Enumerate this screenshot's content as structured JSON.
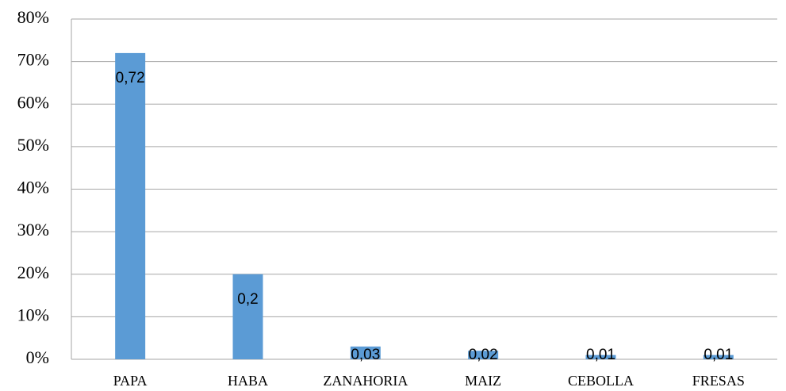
{
  "chart_data": {
    "type": "bar",
    "categories": [
      "PAPA",
      "HABA",
      "ZANAHORIA",
      "MAIZ",
      "CEBOLLA",
      "FRESAS"
    ],
    "values": [
      72,
      20,
      3,
      2,
      1,
      1
    ],
    "value_labels": [
      "0,72",
      "0,2",
      "0,03",
      "0,02",
      "0,01",
      "0,01"
    ],
    "color": "#5b9bd5",
    "ylim": [
      0,
      80
    ],
    "yticks": [
      {
        "value": 0,
        "label": "0%"
      },
      {
        "value": 10,
        "label": "10%"
      },
      {
        "value": 20,
        "label": "20%"
      },
      {
        "value": 30,
        "label": "30%"
      },
      {
        "value": 40,
        "label": "40%"
      },
      {
        "value": 50,
        "label": "50%"
      },
      {
        "value": 60,
        "label": "60%"
      },
      {
        "value": 70,
        "label": "70%"
      },
      {
        "value": 80,
        "label": "80%"
      }
    ],
    "grid": true
  }
}
